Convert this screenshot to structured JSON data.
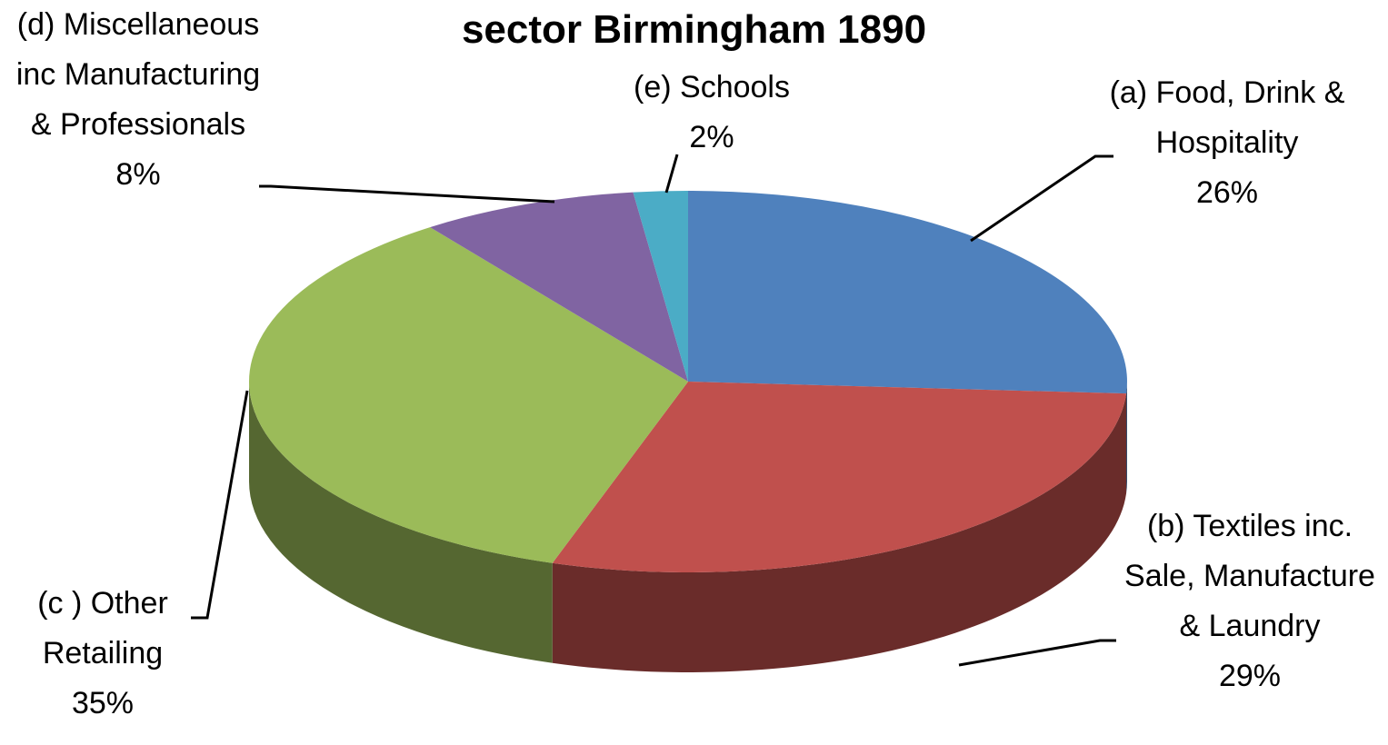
{
  "chart_data": {
    "type": "pie3d",
    "title": "sector Birmingham 1890",
    "categories": [
      "(a) Food, Drink & Hospitality",
      "(b) Textiles inc. Sale, Manufacture & Laundry",
      "(c ) Other Retailing",
      "(d) Miscellaneous inc Manufacturing & Professionals",
      "(e) Schools"
    ],
    "values": [
      26,
      29,
      35,
      8,
      2
    ],
    "value_labels": [
      "26%",
      "29%",
      "35%",
      "8%",
      "2%"
    ],
    "colors": [
      "#4f81bd",
      "#c0504d",
      "#9bbb59",
      "#8064a2",
      "#4bacc6"
    ]
  }
}
